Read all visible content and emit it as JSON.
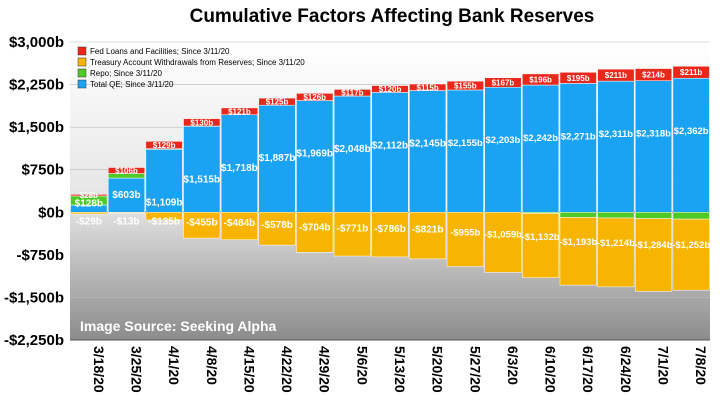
{
  "chart_data": {
    "type": "bar",
    "title": "Cumulative Factors Affecting Bank Reserves",
    "categories": [
      "3/18/20",
      "3/25/20",
      "4/1/20",
      "4/8/20",
      "4/15/20",
      "4/22/20",
      "4/29/20",
      "5/6/20",
      "5/13/20",
      "5/20/20",
      "5/27/20",
      "6/3/20",
      "6/10/20",
      "6/17/20",
      "6/24/20",
      "7/1/20",
      "7/8/20"
    ],
    "ylim": [
      -2250,
      3000
    ],
    "yticks": [
      3000,
      2250,
      1500,
      750,
      0,
      -750,
      -1500,
      -2250
    ],
    "ytick_labels": [
      "$3,000b",
      "$2,250b",
      "$1,500b",
      "$750b",
      "$0b",
      "-$750b",
      "-$1,500b",
      "-$2,250b"
    ],
    "series": [
      {
        "name": "Total QE; Since 3/11/20",
        "color": "#1aa3f2",
        "values": [
          128,
          603,
          1109,
          1515,
          1718,
          1887,
          1969,
          2048,
          2112,
          2145,
          2155,
          2203,
          2242,
          2271,
          2311,
          2318,
          2362
        ],
        "labels": [
          "$128b",
          "$603b",
          "$1,109b",
          "$1,515b",
          "$1,718b",
          "$1,887b",
          "$1,969b",
          "$2,048b",
          "$2,112b",
          "$2,145b",
          "$2,155b",
          "$2,203b",
          "$2,242b",
          "$2,271b",
          "$2,311b",
          "$2,318b",
          "$2,362b"
        ]
      },
      {
        "name": "Fed Loans and Facilities; Since 3/11/20",
        "color": "#e8281b",
        "values": [
          28,
          106,
          129,
          130,
          121,
          125,
          126,
          117,
          120,
          115,
          155,
          167,
          196,
          195,
          211,
          214,
          211
        ],
        "labels": [
          "$28b",
          "$106b",
          "$129b",
          "$130b",
          "$121b",
          "$125b",
          "$126b",
          "$117b",
          "$120b",
          "$115b",
          "$155b",
          "$167b",
          "$196b",
          "$195b",
          "$211b",
          "$214b",
          "$211b"
        ]
      },
      {
        "name": "Repo; Since 3/11/20",
        "color": "#4ec926",
        "values": [
          160,
          80,
          12,
          5,
          0,
          0,
          0,
          0,
          0,
          0,
          0,
          0,
          -20,
          -90,
          -100,
          -110,
          -120
        ]
      },
      {
        "name": "Treasury Account Withdrawals from Reserves; Since 3/11/20",
        "color": "#f7b400",
        "values": [
          -29,
          -13,
          -135,
          -455,
          -484,
          -578,
          -704,
          -771,
          -786,
          -821,
          -955,
          -1059,
          -1132,
          -1193,
          -1214,
          -1284,
          -1252
        ],
        "labels": [
          "-$29b",
          "-$13b",
          "-$135b",
          "-$455b",
          "-$484b",
          "-$578b",
          "-$704b",
          "-$771b",
          "-$786b",
          "-$821b",
          "-$955b",
          "-$1,059b",
          "-$1,132b",
          "-$1,193b",
          "-$1,214b",
          "-$1,284b",
          "-$1,252b"
        ]
      }
    ],
    "legend": [
      {
        "label": "Fed Loans and Facilities; Since 3/11/20",
        "color": "#e8281b"
      },
      {
        "label": "Treasury Account Withdrawals from Reserves; Since 3/11/20",
        "color": "#f7b400"
      },
      {
        "label": "Repo; Since 3/11/20",
        "color": "#4ec926"
      },
      {
        "label": "Total QE; Since 3/11/20",
        "color": "#1aa3f2"
      }
    ],
    "legend_position": "top-left",
    "annotation": "Image Source: Seeking Alpha"
  }
}
